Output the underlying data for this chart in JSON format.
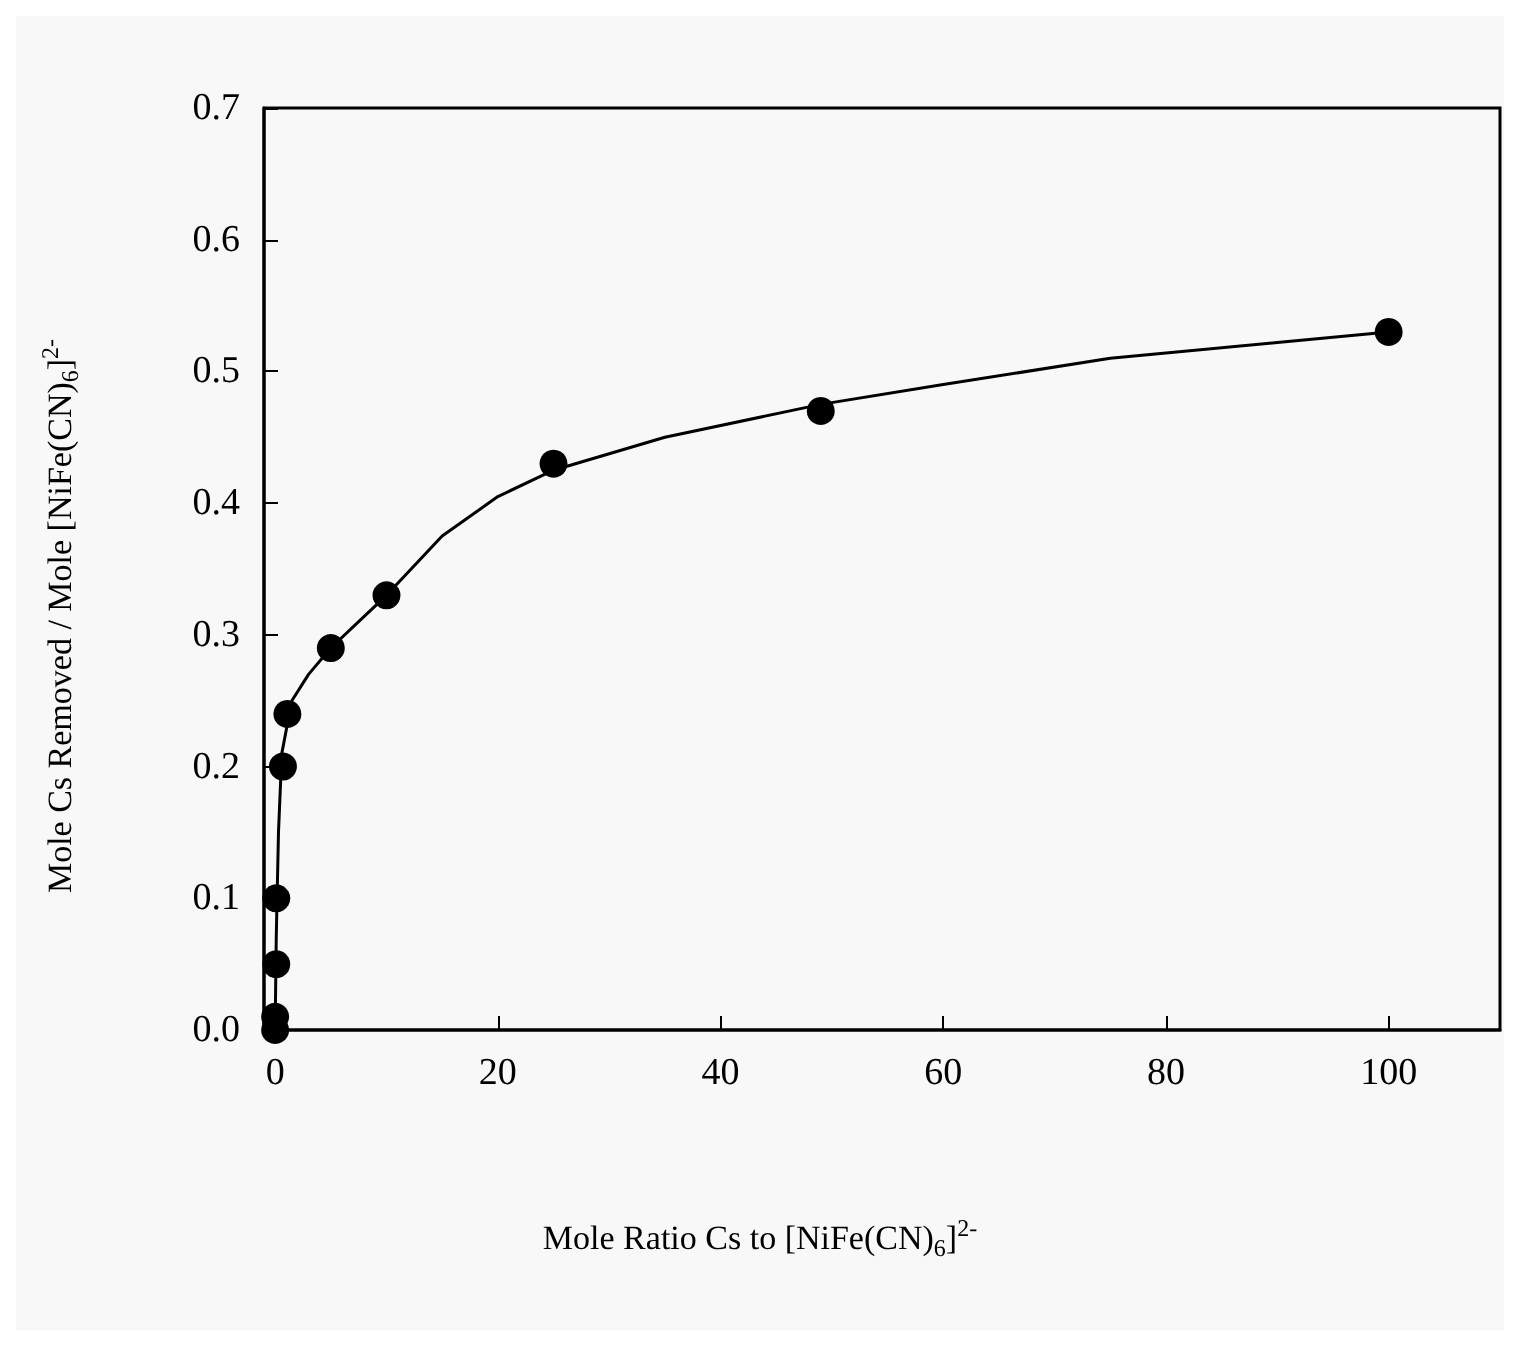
{
  "chart_data": {
    "type": "scatter",
    "xlabel": "Mole Ratio Cs to [NiFe(CN)$_{6}$]$^{2-}$",
    "ylabel": "Mole Cs Removed / Mole [NiFe(CN)$_{6}$]$^{2-}$",
    "xlim": [
      -1,
      110
    ],
    "xticks": [
      0,
      20,
      40,
      60,
      80,
      100
    ],
    "ylim": [
      0,
      0.7
    ],
    "yticks": [
      {
        "value": 0,
        "label": "0.0"
      },
      0.1,
      0.2,
      0.3,
      0.4,
      0.5,
      0.6,
      0.7
    ],
    "grid": false,
    "marker": "circle",
    "series": [
      {
        "color": "#000000",
        "x": [
          0,
          0,
          0.1,
          0.1,
          0.7,
          1.1,
          5,
          10,
          25,
          49,
          100
        ],
        "values": [
          0,
          0.01,
          0.05,
          0.1,
          0.2,
          0.24,
          0.29,
          0.33,
          0.43,
          0.47,
          0.53
        ]
      },
      {
        "type": "line",
        "color": "#000000",
        "marker": "none",
        "line_style": "solid",
        "x": [
          0,
          0.1,
          0.3,
          0.6,
          1.5,
          3,
          5,
          7.5,
          10,
          15,
          20,
          25,
          35,
          49,
          60,
          75,
          90,
          100
        ],
        "values": [
          0,
          0.07,
          0.15,
          0.21,
          0.25,
          0.27,
          0.29,
          0.31,
          0.33,
          0.375,
          0.405,
          0.425,
          0.45,
          0.475,
          0.49,
          0.51,
          0.522,
          0.53
        ]
      }
    ]
  }
}
